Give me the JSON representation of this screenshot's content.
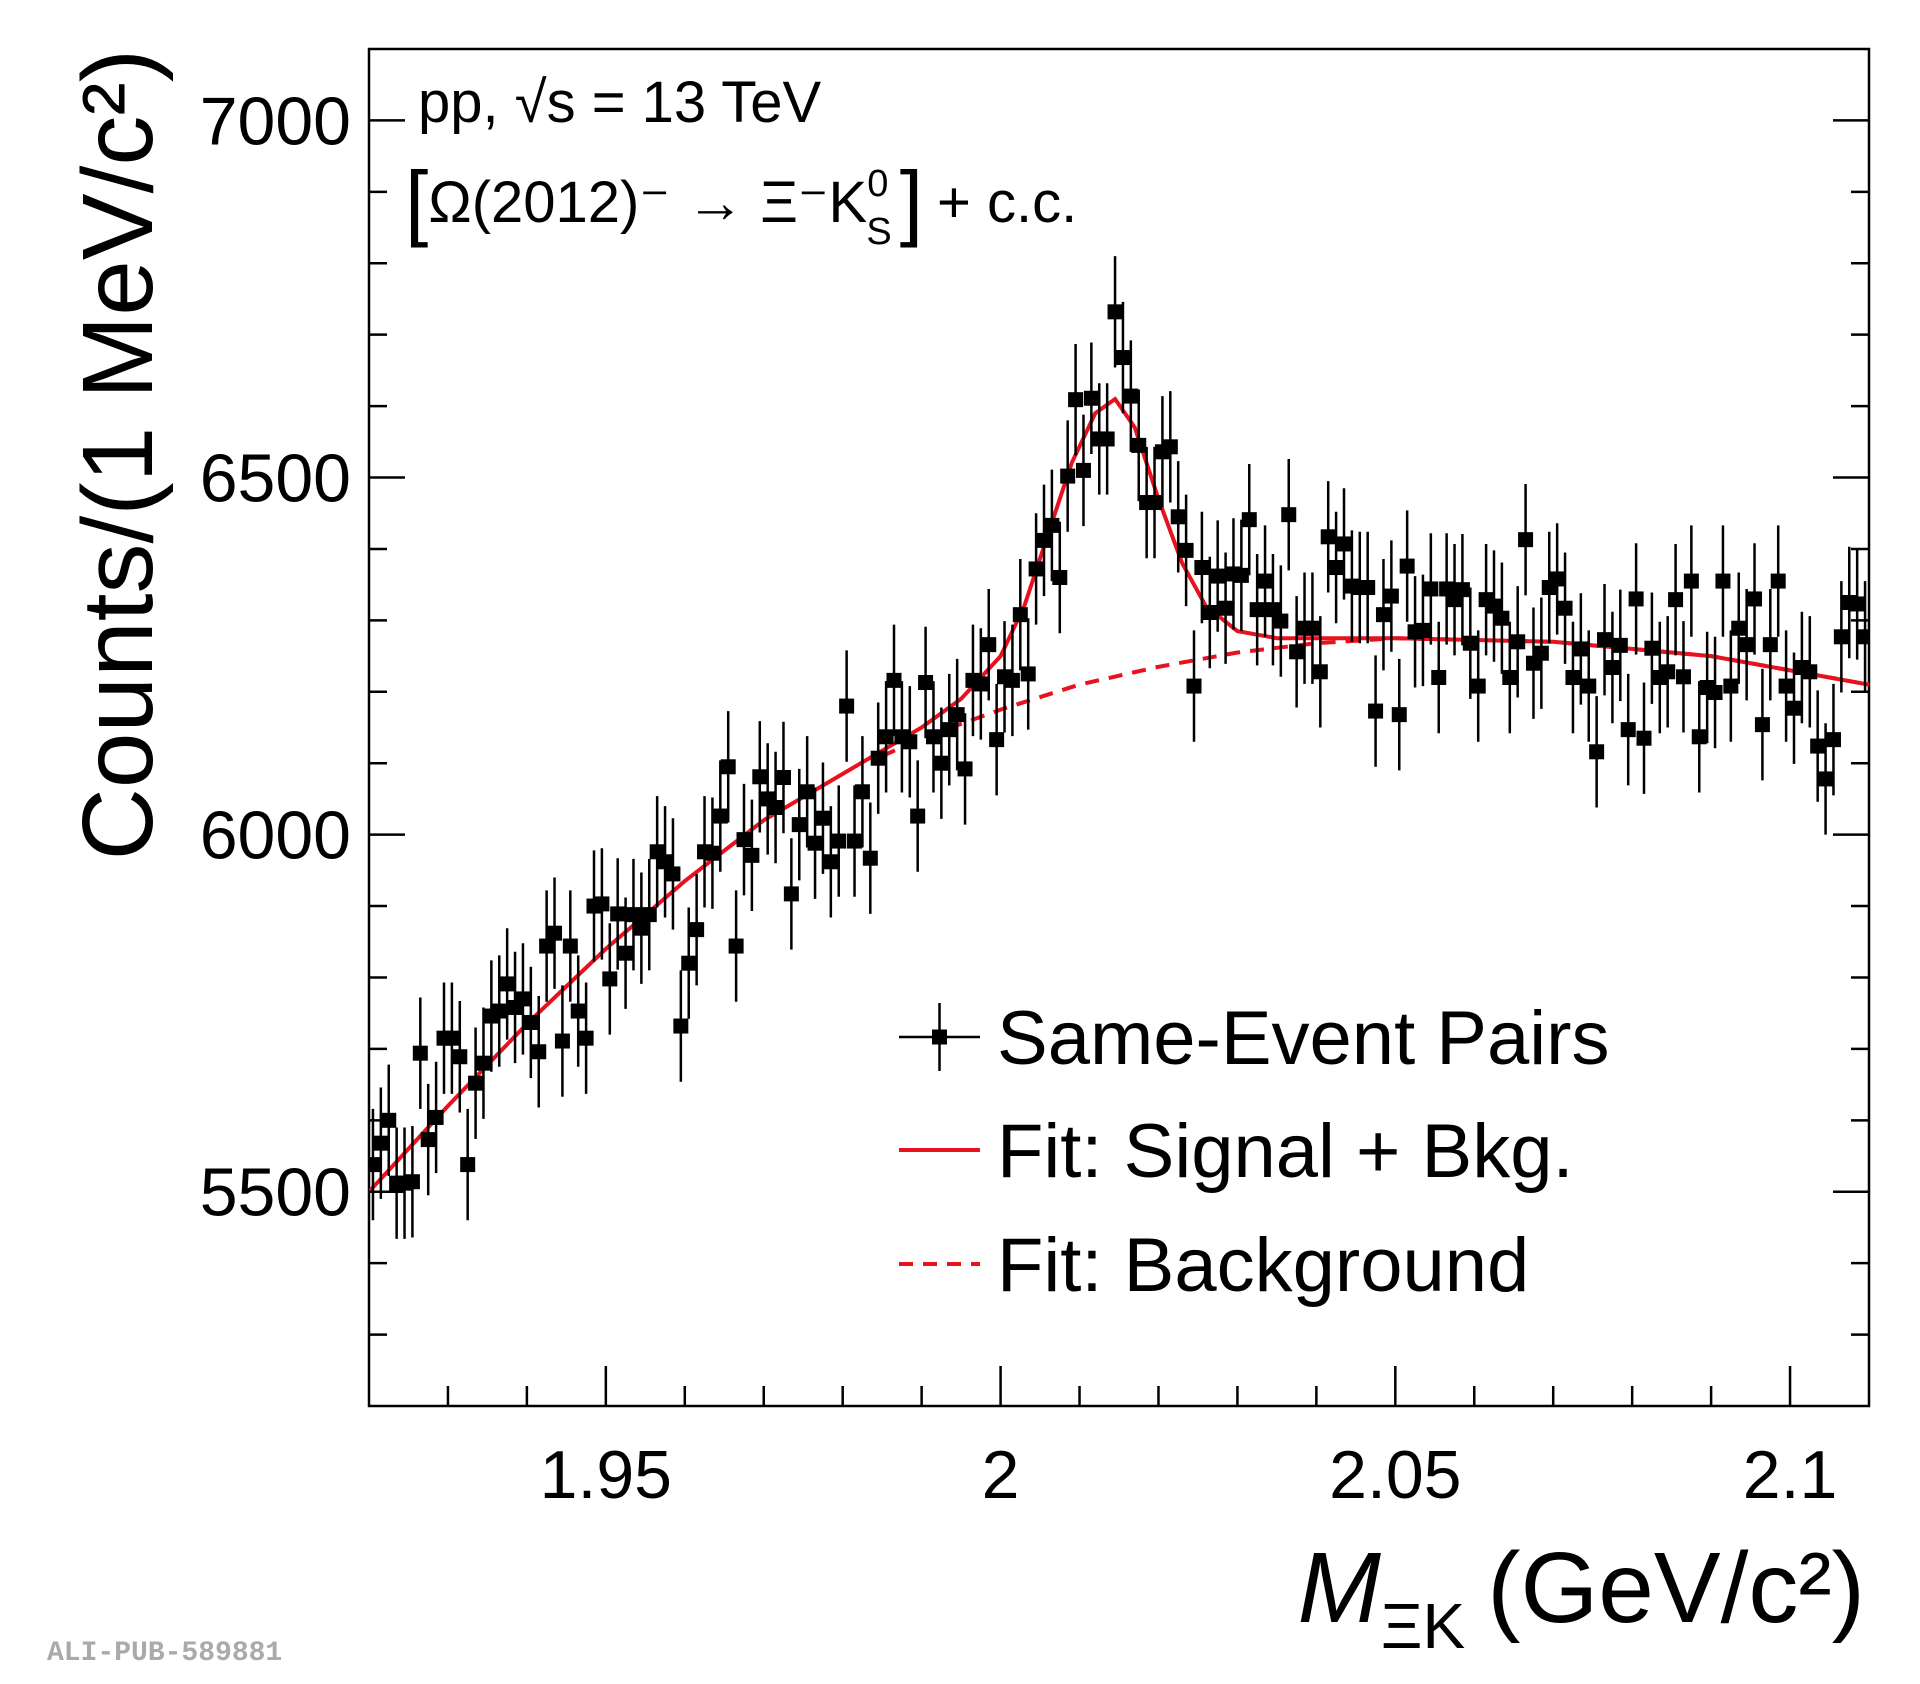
{
  "chart_data": {
    "type": "scatter",
    "annotations": {
      "energy": "pp, √s = 13 TeV",
      "decay": {
        "open": "[",
        "main": "Ω(2012)⁻ → Ξ⁻K",
        "superscript": "0",
        "subscript": "S",
        "close": "]",
        "suffix": "+ c.c."
      }
    },
    "y_label": "Counts/(1 MeV/c²)",
    "x_label": {
      "symbol": "M",
      "subscript": "ΞK",
      "unit": "(GeV/c²)"
    },
    "watermark": "ALI-PUB-589881",
    "xlim": [
      1.92,
      2.11
    ],
    "ylim": [
      5200,
      7100
    ],
    "xticks": [
      1.95,
      2,
      2.05,
      2.1
    ],
    "yticks": [
      5500,
      6000,
      6500,
      7000
    ],
    "xminor": [
      1.93,
      1.94,
      1.96,
      1.97,
      1.98,
      1.99,
      2.01,
      2.02,
      2.03,
      2.04,
      2.06,
      2.07,
      2.08,
      2.09
    ],
    "yminor": [
      5300,
      5400,
      5600,
      5700,
      5800,
      5900,
      6100,
      6200,
      6300,
      6400,
      6600,
      6700,
      6800,
      6900
    ],
    "legend": "lower right",
    "series": [
      {
        "name": "Same-Event Pairs",
        "type": "errorbar",
        "color": "#000000",
        "error": 78,
        "x": [
          1.9205,
          1.9215,
          1.9225,
          1.9235,
          1.9245,
          1.9255,
          1.9265,
          1.9275,
          1.9285,
          1.9295,
          1.9305,
          1.9315,
          1.9325,
          1.9335,
          1.9345,
          1.9355,
          1.9365,
          1.9375,
          1.9385,
          1.9395,
          1.9405,
          1.9415,
          1.9425,
          1.9435,
          1.9445,
          1.9455,
          1.9465,
          1.9475,
          1.9485,
          1.9495,
          1.9505,
          1.9515,
          1.9525,
          1.9535,
          1.9545,
          1.9555,
          1.9565,
          1.9575,
          1.9585,
          1.9595,
          1.9605,
          1.9615,
          1.9625,
          1.9635,
          1.9645,
          1.9655,
          1.9665,
          1.9675,
          1.9685,
          1.9695,
          1.9705,
          1.9715,
          1.9725,
          1.9735,
          1.9745,
          1.9755,
          1.9765,
          1.9775,
          1.9785,
          1.9795,
          1.9805,
          1.9815,
          1.9825,
          1.9835,
          1.9845,
          1.9855,
          1.9865,
          1.9875,
          1.9885,
          1.9895,
          1.9905,
          1.9915,
          1.9925,
          1.9935,
          1.9945,
          1.9955,
          1.9965,
          1.9975,
          1.9985,
          1.9995,
          2.0005,
          2.0015,
          2.0025,
          2.0035,
          2.0045,
          2.0055,
          2.0065,
          2.0075,
          2.0085,
          2.0095,
          2.0105,
          2.0115,
          2.0125,
          2.0135,
          2.0145,
          2.0155,
          2.0165,
          2.0175,
          2.0185,
          2.0195,
          2.0205,
          2.0215,
          2.0225,
          2.0235,
          2.0245,
          2.0255,
          2.0265,
          2.0275,
          2.0285,
          2.0295,
          2.0305,
          2.0315,
          2.0325,
          2.0335,
          2.0345,
          2.0355,
          2.0365,
          2.0375,
          2.0385,
          2.0395,
          2.0405,
          2.0415,
          2.0425,
          2.0435,
          2.0445,
          2.0455,
          2.0465,
          2.0475,
          2.0485,
          2.0495,
          2.0505,
          2.0515,
          2.0525,
          2.0535,
          2.0545,
          2.0555,
          2.0565,
          2.0575,
          2.0585,
          2.0595,
          2.0605,
          2.0615,
          2.0625,
          2.0635,
          2.0645,
          2.0655,
          2.0665,
          2.0675,
          2.0685,
          2.0695,
          2.0705,
          2.0715,
          2.0725,
          2.0735,
          2.0745,
          2.0755,
          2.0765,
          2.0775,
          2.0785,
          2.0795,
          2.0805,
          2.0815,
          2.0825,
          2.0835,
          2.0845,
          2.0855,
          2.0865,
          2.0875,
          2.0885,
          2.0895,
          2.0905,
          2.0915,
          2.0925,
          2.0935,
          2.0945,
          2.0955,
          2.0965,
          2.0975,
          2.0985,
          2.0995,
          2.1005,
          2.1015,
          2.1025,
          2.1035,
          2.1045,
          2.1055,
          2.1065,
          2.1075,
          2.1085,
          2.1095
        ],
        "values": [
          5538,
          5568,
          5600,
          5512,
          5512,
          5514,
          5694,
          5573,
          5604,
          5715,
          5715,
          5689,
          5538,
          5652,
          5680,
          5746,
          5753,
          5791,
          5758,
          5770,
          5737,
          5696,
          5844,
          5862,
          5711,
          5844,
          5753,
          5715,
          5900,
          5903,
          5798,
          5889,
          5834,
          5888,
          5869,
          5888,
          5976,
          5962,
          5945,
          5732,
          5820,
          5867,
          5976,
          5974,
          6026,
          6095,
          5844,
          5993,
          5971,
          6081,
          6050,
          6038,
          6080,
          5917,
          6014,
          6060,
          5988,
          6023,
          5962,
          5991,
          6180,
          5991,
          6060,
          5967,
          6107,
          6137,
          6216,
          6137,
          6130,
          6026,
          6213,
          6137,
          6100,
          6147,
          6168,
          6092,
          6216,
          6211,
          6266,
          6133,
          6221,
          6216,
          6308,
          6225,
          6372,
          6412,
          6433,
          6360,
          6502,
          6609,
          6510,
          6611,
          6554,
          6554,
          6732,
          6668,
          6614,
          6545,
          6465,
          6465,
          6536,
          6543,
          6445,
          6398,
          6208,
          6374,
          6311,
          6362,
          6317,
          6365,
          6363,
          6441,
          6315,
          6355,
          6315,
          6299,
          6448,
          6256,
          6289,
          6289,
          6228,
          6417,
          6374,
          6407,
          6348,
          6346,
          6346,
          6173,
          6308,
          6334,
          6168,
          6376,
          6284,
          6286,
          6344,
          6220,
          6344,
          6329,
          6343,
          6268,
          6208,
          6329,
          6320,
          6303,
          6220,
          6270,
          6413,
          6240,
          6254,
          6346,
          6358,
          6317,
          6220,
          6260,
          6208,
          6116,
          6273,
          6234,
          6265,
          6147,
          6330,
          6135,
          6261,
          6220,
          6228,
          6329,
          6221,
          6355,
          6137,
          6206,
          6199,
          6355,
          6208,
          6289,
          6266,
          6330,
          6154,
          6266,
          6355,
          6208,
          6177,
          6234,
          6228,
          6124,
          6078,
          6133,
          6277,
          6325,
          6323,
          6277
        ]
      },
      {
        "name": "Fit: Signal + Bkg.",
        "type": "line",
        "color": "#e8121f",
        "dashed": false,
        "x": [
          1.92,
          1.93,
          1.94,
          1.95,
          1.96,
          1.97,
          1.98,
          1.99,
          1.995,
          2.0,
          2.003,
          2.006,
          2.009,
          2.012,
          2.0145,
          2.017,
          2.02,
          2.023,
          2.026,
          2.03,
          2.035,
          2.05,
          2.07,
          2.09,
          2.11
        ],
        "values": [
          5500,
          5620,
          5735,
          5840,
          5935,
          6020,
          6085,
          6150,
          6190,
          6250,
          6320,
          6420,
          6520,
          6590,
          6610,
          6570,
          6470,
          6380,
          6320,
          6285,
          6275,
          6275,
          6270,
          6250,
          6210
        ]
      },
      {
        "name": "Fit: Background",
        "type": "line",
        "color": "#e8121f",
        "dashed": true,
        "x": [
          1.985,
          1.99,
          2.0,
          2.01,
          2.02,
          2.03,
          2.04,
          2.05,
          2.07,
          2.09,
          2.11
        ],
        "values": [
          6110,
          6135,
          6175,
          6210,
          6235,
          6255,
          6268,
          6275,
          6270,
          6250,
          6210
        ]
      }
    ]
  }
}
